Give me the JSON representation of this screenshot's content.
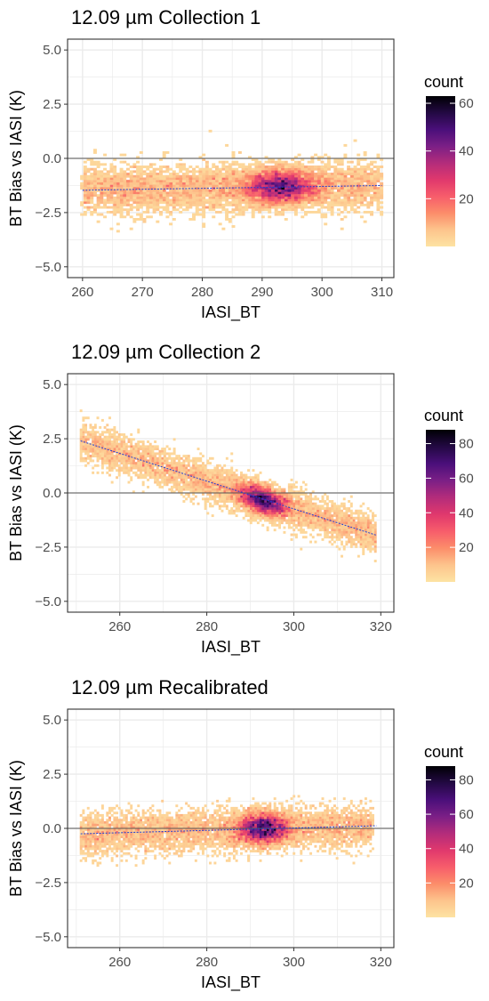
{
  "chart_data": [
    {
      "type": "heatmap",
      "title": "12.09 µm Collection 1",
      "xlabel": "IASI_BT",
      "ylabel": "BT Bias vs IASI (K)",
      "xlim": [
        257.5,
        312
      ],
      "ylim": [
        -5.5,
        5.5
      ],
      "xticks": [
        260,
        270,
        280,
        290,
        300,
        310
      ],
      "xtick_labels": [
        "260",
        "270",
        "280",
        "290",
        "300",
        "310"
      ],
      "yticks": [
        -5,
        -2.5,
        0,
        2.5,
        5
      ],
      "ytick_labels": [
        "−5.0",
        "−2.5",
        "0.0",
        "2.5",
        "5.0"
      ],
      "grid": true,
      "reference_line_y": 0,
      "fit_line": {
        "x": [
          260,
          310
        ],
        "y": [
          -1.47,
          -1.25
        ]
      },
      "density": {
        "x_range": [
          260,
          310
        ],
        "center_x": 293,
        "center_y": -1.3,
        "spread_y": 0.55,
        "peak_count": 62
      },
      "legend": {
        "title": "count",
        "position": "right",
        "max": 63,
        "ticks": [
          20,
          40,
          60
        ],
        "tick_labels": [
          "20",
          "40",
          "60"
        ]
      }
    },
    {
      "type": "heatmap",
      "title": "12.09 µm Collection 2",
      "xlabel": "IASI_BT",
      "ylabel": "BT Bias vs IASI (K)",
      "xlim": [
        248,
        323
      ],
      "ylim": [
        -5.5,
        5.5
      ],
      "xticks": [
        260,
        280,
        300,
        320
      ],
      "xtick_labels": [
        "260",
        "280",
        "300",
        "320"
      ],
      "yticks": [
        -5,
        -2.5,
        0,
        2.5,
        5
      ],
      "ytick_labels": [
        "−5.0",
        "−2.5",
        "0.0",
        "2.5",
        "5.0"
      ],
      "grid": true,
      "reference_line_y": 0,
      "fit_line": {
        "x": [
          251,
          319
        ],
        "y": [
          2.4,
          -1.95
        ]
      },
      "density": {
        "x_range": [
          251,
          319
        ],
        "center_x": 293,
        "center_y": -0.35,
        "spread_y": 0.45,
        "peak_count": 85
      },
      "legend": {
        "title": "count",
        "position": "right",
        "max": 88,
        "ticks": [
          20,
          40,
          60,
          80
        ],
        "tick_labels": [
          "20",
          "40",
          "60",
          "80"
        ]
      }
    },
    {
      "type": "heatmap",
      "title": "12.09 µm Recalibrated",
      "xlabel": "IASI_BT",
      "ylabel": "BT Bias vs IASI (K)",
      "xlim": [
        248,
        323
      ],
      "ylim": [
        -5.5,
        5.5
      ],
      "xticks": [
        260,
        280,
        300,
        320
      ],
      "xtick_labels": [
        "260",
        "280",
        "300",
        "320"
      ],
      "yticks": [
        -5,
        -2.5,
        0,
        2.5,
        5
      ],
      "ytick_labels": [
        "−5.0",
        "−2.5",
        "0.0",
        "2.5",
        "5.0"
      ],
      "grid": true,
      "reference_line_y": 0,
      "fit_line": {
        "x": [
          251,
          319
        ],
        "y": [
          -0.25,
          0.12
        ]
      },
      "density": {
        "x_range": [
          251,
          318
        ],
        "center_x": 293,
        "center_y": 0.0,
        "spread_y": 0.5,
        "peak_count": 85
      },
      "legend": {
        "title": "count",
        "position": "right",
        "max": 88,
        "ticks": [
          20,
          40,
          60,
          80
        ],
        "tick_labels": [
          "20",
          "40",
          "60",
          "80"
        ]
      }
    }
  ],
  "colors": {
    "colormap": [
      "#fde3a3",
      "#fdc48c",
      "#fc8d6a",
      "#f75d6b",
      "#e0386d",
      "#b32c7b",
      "#7b1f86",
      "#4a0f7a",
      "#230943",
      "#000004"
    ],
    "reference_line": "#555555",
    "fit_line": "#1f3fd6",
    "grid": "#ebebeb",
    "panel_border": "#333333"
  }
}
